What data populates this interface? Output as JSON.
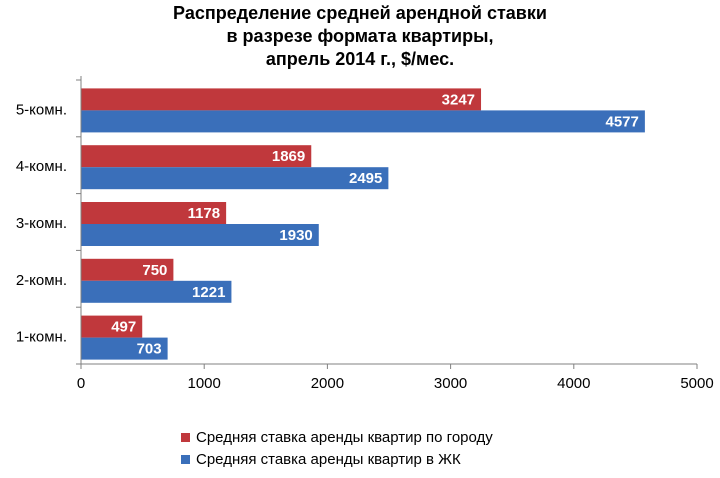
{
  "chart_data": {
    "type": "bar",
    "orientation": "horizontal",
    "title_lines": [
      "Распределение средней арендной ставки",
      "в разрезе формата квартиры,",
      "апрель 2014 г., $/мес."
    ],
    "categories": [
      "5-комн.",
      "4-комн.",
      "3-комн.",
      "2-комн.",
      "1-комн."
    ],
    "series": [
      {
        "name": "Средняя ставка аренды квартир по городу",
        "color": "#c0383c",
        "values": [
          3247,
          1869,
          1178,
          750,
          497
        ],
        "labels": [
          "3247",
          "1869",
          "1178",
          "750",
          "497"
        ]
      },
      {
        "name": "Средняя ставка аренды квартир в ЖК",
        "color": "#3a6fba",
        "values": [
          4577,
          2495,
          1930,
          1221,
          703
        ],
        "labels": [
          "4577",
          "2495",
          "1930",
          "1221",
          "703"
        ]
      }
    ],
    "xlim": [
      0,
      5000
    ],
    "x_ticks": [
      0,
      1000,
      2000,
      3000,
      4000,
      5000
    ],
    "x_tick_labels": [
      "0",
      "1000",
      "2000",
      "3000",
      "4000",
      "5000"
    ],
    "grid": false,
    "legend_position": "bottom"
  }
}
